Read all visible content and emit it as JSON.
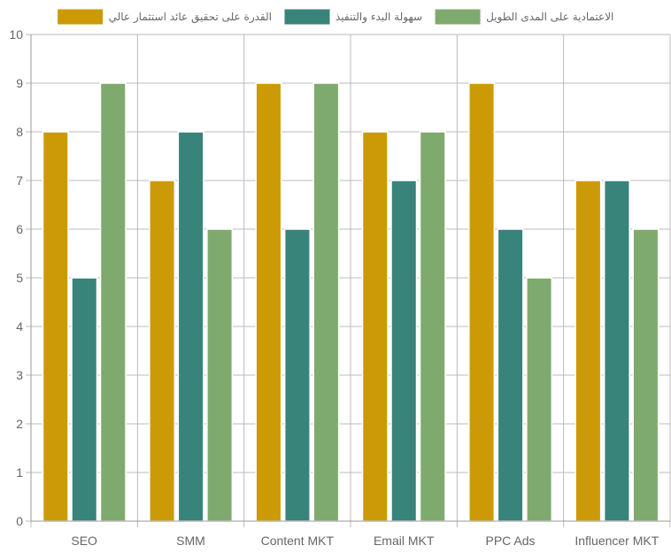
{
  "chart_data": {
    "type": "bar",
    "categories": [
      "SEO",
      "SMM",
      "Content MKT",
      "Email MKT",
      "PPC Ads",
      "Influencer MKT"
    ],
    "series": [
      {
        "name": "القدرة على تحقيق عائد استثمار عالي",
        "color": "#cc9a06",
        "values": [
          8,
          7,
          9,
          8,
          9,
          7
        ]
      },
      {
        "name": "سهولة البدء والتنفيذ",
        "color": "#38837a",
        "values": [
          5,
          8,
          6,
          7,
          6,
          7
        ]
      },
      {
        "name": "الاعتمادية على المدى الطويل",
        "color": "#7faa6e",
        "values": [
          9,
          6,
          9,
          8,
          5,
          6
        ]
      }
    ],
    "ylim": [
      0,
      10
    ],
    "yticks": [
      "0",
      "1",
      "2",
      "3",
      "4",
      "5",
      "6",
      "7",
      "8",
      "9",
      "10"
    ],
    "grid": true,
    "legend_position": "top"
  }
}
